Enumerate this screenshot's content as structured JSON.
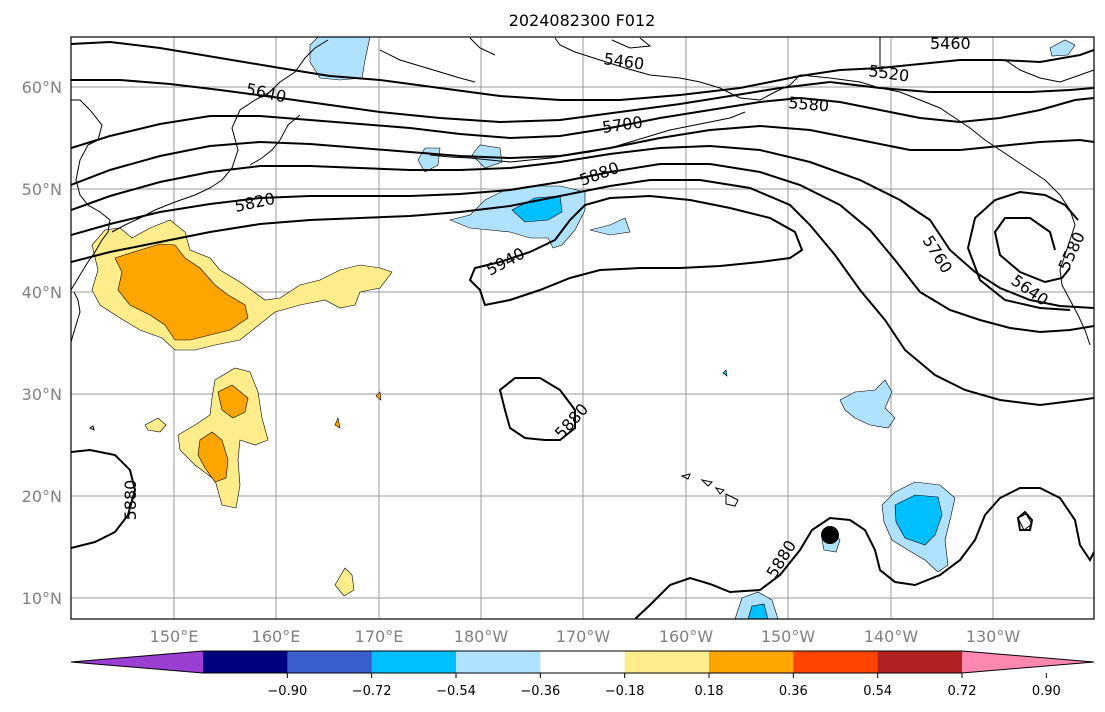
{
  "title": "2024082300 F012",
  "lat_labels": [
    "10°N",
    "20°N",
    "30°N",
    "40°N",
    "50°N",
    "60°N"
  ],
  "lon_labels": [
    "150°E",
    "160°E",
    "170°E",
    "180°W",
    "170°W",
    "160°W",
    "150°W",
    "140°W",
    "130°W"
  ],
  "contour_labels": [
    "5460",
    "5460",
    "5520",
    "5580",
    "5640",
    "5700",
    "5820",
    "5880",
    "5940",
    "5760",
    "5640",
    "5580",
    "5880",
    "5880",
    "5880"
  ],
  "colorbar": {
    "tick_labels": [
      "−0.90",
      "−0.72",
      "−0.54",
      "−0.36",
      "−0.18",
      "0.18",
      "0.36",
      "0.54",
      "0.72",
      "0.90"
    ],
    "colors": [
      "#9a3fd1",
      "#000080",
      "#3a5fcd",
      "#00bfff",
      "#b0e2ff",
      "#ffffff",
      "#ffec8b",
      "#ffa500",
      "#ff4500",
      "#b22222",
      "#ff88b0"
    ]
  },
  "map": {
    "lon_range": [
      "140°E",
      "120°W"
    ],
    "lat_range": [
      "8°N",
      "65°N"
    ],
    "contour_field": "geopotential height",
    "shading_field": "anomaly",
    "marker": "black-dot"
  }
}
